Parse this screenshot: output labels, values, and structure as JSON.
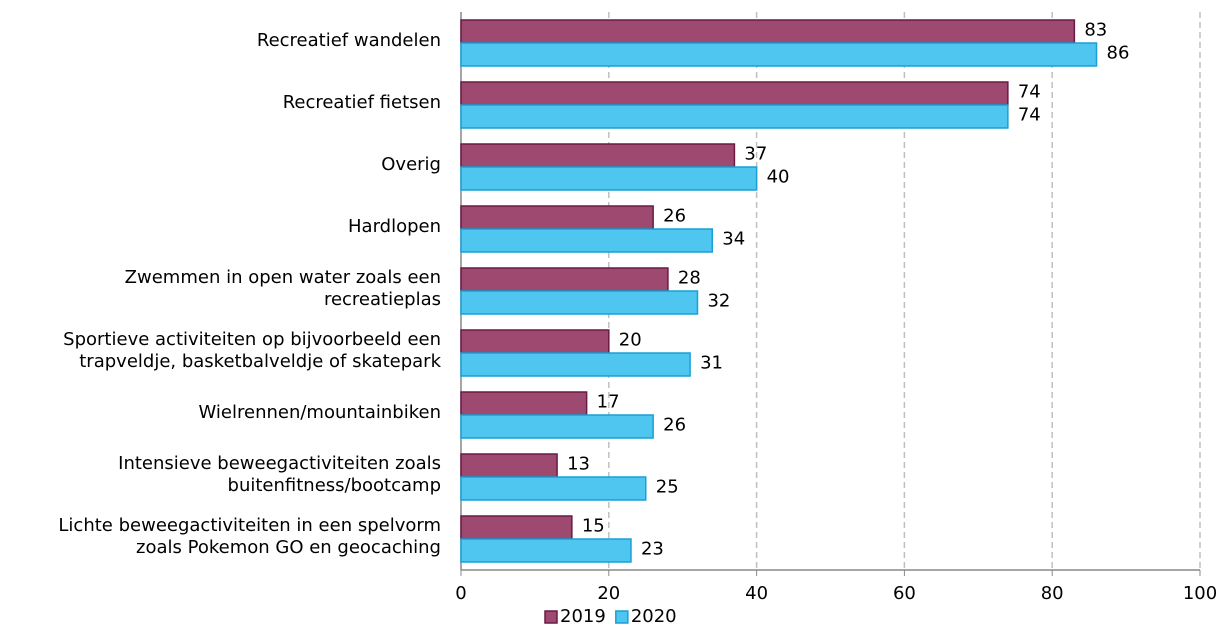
{
  "chart_data": {
    "type": "bar",
    "orientation": "horizontal",
    "categories": [
      "Recreatief wandelen",
      "Recreatief fietsen",
      "Overig",
      "Hardlopen",
      "Zwemmen in open water zoals een\nrecreatieplas",
      "Sportieve activiteiten op bijvoorbeeld een\ntrapveldje, basketbalveldje of skatepark",
      "Wielrennen/mountainbiken",
      "Intensieve beweegactiviteiten zoals\nbuitenfitness/bootcamp",
      "Lichte beweegactiviteiten in een spelvorm\nzoals Pokemon GO en geocaching"
    ],
    "series": [
      {
        "name": "2019",
        "color": "#9e4a70",
        "edge": "#6b1a45",
        "values": [
          83,
          74,
          37,
          26,
          28,
          20,
          17,
          13,
          15
        ]
      },
      {
        "name": "2020",
        "color": "#4fc6f0",
        "edge": "#1a9fd6",
        "values": [
          86,
          74,
          40,
          34,
          32,
          31,
          26,
          25,
          23
        ]
      }
    ],
    "xlim": [
      0,
      100
    ],
    "xticks": [
      0,
      20,
      40,
      60,
      80,
      100
    ],
    "grid": true,
    "legend": "bottom"
  }
}
